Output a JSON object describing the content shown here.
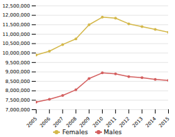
{
  "chart_data": {
    "type": "line",
    "x": [
      2005,
      2006,
      2007,
      2008,
      2009,
      2010,
      2011,
      2012,
      2013,
      2014,
      2015
    ],
    "series": [
      {
        "name": "Females",
        "color": "#d4b84a",
        "marker": "circle",
        "values": [
          9900000,
          10100000,
          10450000,
          10750000,
          11500000,
          11900000,
          11850000,
          11550000,
          11400000,
          11250000,
          11100000
        ]
      },
      {
        "name": "Males",
        "color": "#d45f5f",
        "marker": "circle",
        "values": [
          7400000,
          7550000,
          7750000,
          8050000,
          8650000,
          8950000,
          8900000,
          8750000,
          8700000,
          8600000,
          8550000
        ]
      }
    ],
    "xlim": [
      2005,
      2015
    ],
    "xticks": [
      2005,
      2006,
      2007,
      2008,
      2009,
      2010,
      2011,
      2012,
      2013,
      2014,
      2015
    ],
    "ylim": [
      7000000,
      12500000
    ],
    "yticks": [
      {
        "value": 7000000,
        "label": "7,000,000"
      },
      {
        "value": 7500000,
        "label": "7,500,000"
      },
      {
        "value": 8000000,
        "label": "8,000,000"
      },
      {
        "value": 8500000,
        "label": "8,500,000"
      },
      {
        "value": 9000000,
        "label": "9,000,000"
      },
      {
        "value": 9500000,
        "label": "9,500,000"
      },
      {
        "value": 10000000,
        "label": "10,000,000"
      },
      {
        "value": 10500000,
        "label": "10,500,000"
      },
      {
        "value": 11000000,
        "label": "11,000,000"
      },
      {
        "value": 11500000,
        "label": "11,500,000"
      },
      {
        "value": 12000000,
        "label": "12,000,000"
      },
      {
        "value": 12500000,
        "label": "12,500,000"
      }
    ],
    "grid": true,
    "legend": "bottom"
  }
}
